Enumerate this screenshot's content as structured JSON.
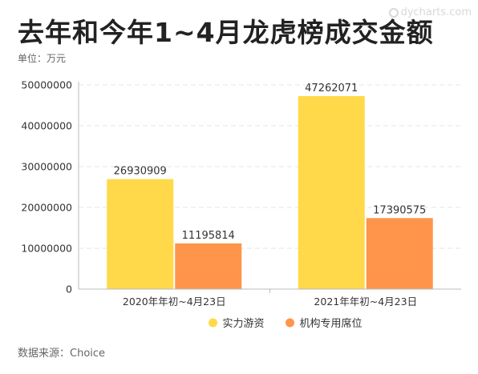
{
  "header": {
    "title": "去年和今年1~4月龙虎榜成交金额",
    "unit": "单位：万元",
    "watermark": "dycharts.com"
  },
  "footer": {
    "source": "数据来源：Choice"
  },
  "chart_data": {
    "type": "bar",
    "categories": [
      "2020年年初~4月23日",
      "2021年年初~4月23日"
    ],
    "series": [
      {
        "name": "实力游资",
        "color": "#FFD94A",
        "values": [
          26930909,
          47262071
        ]
      },
      {
        "name": "机构专用席位",
        "color": "#FF954A",
        "values": [
          11195814,
          17390575
        ]
      }
    ],
    "ylim": [
      0,
      50000000
    ],
    "yticks": [
      0,
      10000000,
      20000000,
      30000000,
      40000000,
      50000000
    ],
    "ytick_labels": [
      "0",
      "10000000",
      "20000000",
      "30000000",
      "40000000",
      "50000000"
    ],
    "grid": true,
    "legend_position": "bottom"
  }
}
